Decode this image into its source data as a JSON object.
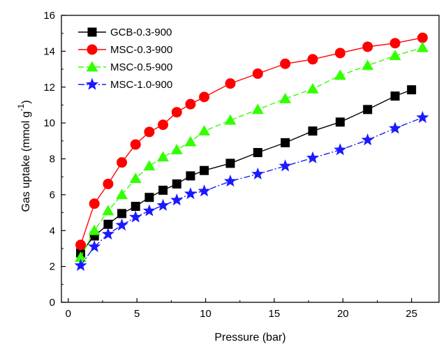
{
  "chart_data": {
    "type": "line",
    "xlabel": "Pressure (bar)",
    "ylabel_main": "Gas uptake (mmol g",
    "ylabel_sup": "-1",
    "ylabel_close": ")",
    "xlim": [
      -0.5,
      27
    ],
    "ylim": [
      0,
      16
    ],
    "xticks": [
      0,
      5,
      10,
      15,
      20,
      25
    ],
    "yticks": [
      0,
      2,
      4,
      6,
      8,
      10,
      12,
      14,
      16
    ],
    "grid": false,
    "legend_position": "top-left",
    "series": [
      {
        "name": "GCB-0.3-900",
        "marker": "square",
        "color": "#000000",
        "dash": "solid",
        "x": [
          0.9,
          1.9,
          2.9,
          3.9,
          4.9,
          5.9,
          6.9,
          7.9,
          8.9,
          9.9,
          11.8,
          13.8,
          15.8,
          17.8,
          19.8,
          21.8,
          23.8,
          25.0
        ],
        "y": [
          2.75,
          3.7,
          4.35,
          4.95,
          5.35,
          5.85,
          6.25,
          6.6,
          7.05,
          7.35,
          7.75,
          8.35,
          8.9,
          9.55,
          10.05,
          10.75,
          11.5,
          11.85
        ]
      },
      {
        "name": "MSC-0.3-900",
        "marker": "circle",
        "color": "#ff0000",
        "dash": "solid",
        "x": [
          0.9,
          1.9,
          2.9,
          3.9,
          4.9,
          5.9,
          6.9,
          7.9,
          8.9,
          9.9,
          11.8,
          13.8,
          15.8,
          17.8,
          19.8,
          21.8,
          23.8,
          25.8
        ],
        "y": [
          3.2,
          5.5,
          6.6,
          7.8,
          8.8,
          9.5,
          9.9,
          10.6,
          11.05,
          11.45,
          12.2,
          12.75,
          13.3,
          13.55,
          13.9,
          14.25,
          14.45,
          14.75
        ]
      },
      {
        "name": "MSC-0.5-900",
        "marker": "triangle",
        "color": "#33ff00",
        "dash": "dashed",
        "x": [
          0.9,
          1.9,
          2.9,
          3.9,
          4.9,
          5.9,
          6.9,
          7.9,
          8.9,
          9.9,
          11.8,
          13.8,
          15.8,
          17.8,
          19.8,
          21.8,
          23.8,
          25.8
        ],
        "y": [
          2.5,
          4.0,
          5.1,
          6.0,
          6.9,
          7.6,
          8.1,
          8.5,
          8.95,
          9.55,
          10.15,
          10.75,
          11.35,
          11.9,
          12.65,
          13.2,
          13.75,
          14.2
        ]
      },
      {
        "name": "MSC-1.0-900",
        "marker": "star",
        "color": "#1a1aff",
        "dash": "dashdot",
        "x": [
          0.9,
          1.9,
          2.9,
          3.9,
          4.9,
          5.9,
          6.9,
          7.9,
          8.9,
          9.9,
          11.8,
          13.8,
          15.8,
          17.8,
          19.8,
          21.8,
          23.8,
          25.8
        ],
        "y": [
          2.05,
          3.1,
          3.8,
          4.3,
          4.75,
          5.1,
          5.4,
          5.7,
          6.05,
          6.2,
          6.75,
          7.15,
          7.6,
          8.05,
          8.5,
          9.05,
          9.7,
          10.3
        ]
      }
    ]
  }
}
